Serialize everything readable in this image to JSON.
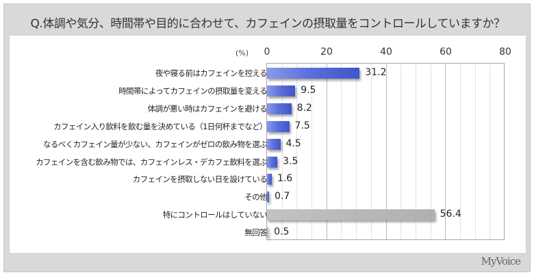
{
  "title": "Q.体調や気分、時間帯や目的に合わせて、カフェインの摂取量をコントロールしていますか？",
  "axis": {
    "unit_label": "(%)",
    "ticks": [
      "0",
      "20",
      "40",
      "60",
      "80"
    ]
  },
  "rows": [
    {
      "label": "夜や寝る前はカフェインを控える",
      "value": "31.2"
    },
    {
      "label": "時間帯によってカフェインの摂取量を変える",
      "value": "9.5"
    },
    {
      "label": "体調が悪い時はカフェインを避ける",
      "value": "8.2"
    },
    {
      "label": "カフェイン入り飲料を飲む量を決めている（1日何杯までなど）",
      "value": "7.5"
    },
    {
      "label": "なるべくカフェイン量が少ない、カフェインがゼロの飲み物を選ぶ",
      "value": "4.5"
    },
    {
      "label": "カフェインを含む飲み物では、カフェインレス・デカフェ飲料を選ぶ",
      "value": "3.5"
    },
    {
      "label": "カフェインを摂取しない日を設けている",
      "value": "1.6"
    },
    {
      "label": "その他",
      "value": "0.7"
    },
    {
      "label": "特にコントロールはしていない",
      "value": "56.4"
    },
    {
      "label": "無回答",
      "value": "0.5"
    }
  ],
  "brand": {
    "logo_text": "MyVoice"
  },
  "colors": {
    "bar_primary": "#4f64d4",
    "bar_gray": "#b5b5b5",
    "frame_bg": "#d9d9d9"
  },
  "chart_data": {
    "type": "bar",
    "orientation": "horizontal",
    "title": "Q.体調や気分、時間帯や目的に合わせて、カフェインの摂取量をコントロールしていますか？",
    "xlabel": "(%)",
    "ylabel": "",
    "xlim": [
      0,
      80
    ],
    "x_ticks": [
      0,
      20,
      40,
      60,
      80
    ],
    "grid": {
      "major_every": 20,
      "minor_every": 5
    },
    "legend": null,
    "categories": [
      "夜や寝る前はカフェインを控える",
      "時間帯によってカフェインの摂取量を変える",
      "体調が悪い時はカフェインを避ける",
      "カフェイン入り飲料を飲む量を決めている（1日何杯までなど）",
      "なるべくカフェイン量が少ない、カフェインがゼロの飲み物を選ぶ",
      "カフェインを含む飲み物では、カフェインレス・デカフェ飲料を選ぶ",
      "カフェインを摂取しない日を設けている",
      "その他",
      "特にコントロールはしていない",
      "無回答"
    ],
    "values": [
      31.2,
      9.5,
      8.2,
      7.5,
      4.5,
      3.5,
      1.6,
      0.7,
      56.4,
      0.5
    ],
    "bar_colors": [
      "blue",
      "blue",
      "blue",
      "blue",
      "blue",
      "blue",
      "blue",
      "blue",
      "gray",
      "gray"
    ]
  }
}
